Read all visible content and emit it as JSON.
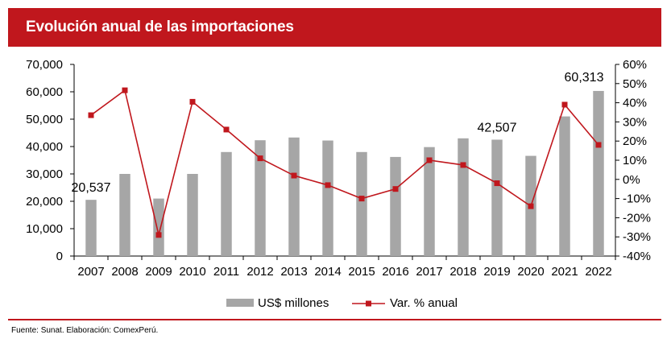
{
  "title": "Evolución anual de las importaciones",
  "source": "Fuente: Sunat. Elaboración: ComexPerú.",
  "colors": {
    "brand_red": "#c0171d",
    "bar_gray": "#a6a6a6",
    "line_red": "#c0171d"
  },
  "chart_data": {
    "type": "bar+line",
    "title": "Evolución anual de las importaciones",
    "categories": [
      "2007",
      "2008",
      "2009",
      "2010",
      "2011",
      "2012",
      "2013",
      "2014",
      "2015",
      "2016",
      "2017",
      "2018",
      "2019",
      "2020",
      "2021",
      "2022"
    ],
    "series": [
      {
        "name": "US$ millones",
        "type": "bar",
        "axis": "left",
        "values": [
          20537,
          30000,
          21000,
          30000,
          38000,
          42300,
          43300,
          42200,
          38000,
          36200,
          39800,
          43000,
          42507,
          36600,
          51000,
          60313
        ]
      },
      {
        "name": "Var. % anual",
        "type": "line",
        "axis": "right",
        "values": [
          33.5,
          46.5,
          -29,
          40.5,
          26,
          11,
          2,
          -3,
          -10,
          -5,
          10,
          7.5,
          -2,
          -14,
          39,
          18
        ]
      }
    ],
    "left_axis": {
      "min": 0,
      "max": 70000,
      "step": 10000,
      "tick_labels": [
        "0",
        "10,000",
        "20,000",
        "30,000",
        "40,000",
        "50,000",
        "60,000",
        "70,000"
      ]
    },
    "right_axis": {
      "min": -40,
      "max": 60,
      "step": 10,
      "tick_labels": [
        "-40%",
        "-30%",
        "-20%",
        "-10%",
        "0%",
        "10%",
        "20%",
        "30%",
        "40%",
        "50%",
        "60%"
      ]
    },
    "data_labels": [
      {
        "category": "2007",
        "text": "20,537"
      },
      {
        "category": "2019",
        "text": "42,507"
      },
      {
        "category": "2022",
        "text": "60,313"
      }
    ],
    "legend": {
      "position": "bottom",
      "items": [
        {
          "label": "US$ millones",
          "marker": "bar"
        },
        {
          "label": "Var. % anual",
          "marker": "line"
        }
      ]
    },
    "grid": false
  }
}
